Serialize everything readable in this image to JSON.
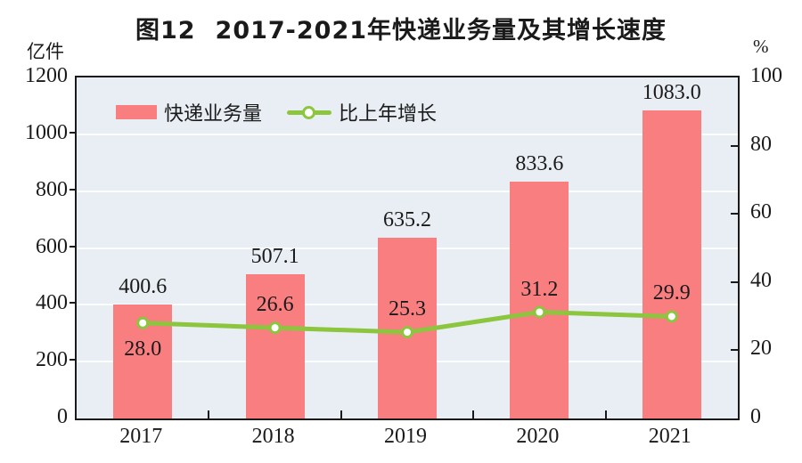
{
  "title": {
    "figure_no": "图12",
    "text": "2017-2021年快递业务量及其增长速度"
  },
  "axes": {
    "left": {
      "unit": "亿件",
      "tick_labels": [
        "1200",
        "1000",
        "800",
        "600",
        "400",
        "200",
        "0"
      ]
    },
    "right": {
      "unit": "%",
      "tick_labels": [
        "100",
        "80",
        "60",
        "40",
        "20",
        "0"
      ]
    },
    "x": {
      "labels": [
        "2017",
        "2018",
        "2019",
        "2020",
        "2021"
      ]
    }
  },
  "legend": {
    "bar_label": "快递业务量",
    "line_label": "比上年增长"
  },
  "colors": {
    "bar": "#f87e80",
    "line": "#8cc63f",
    "plot_bg": "#e8eef4",
    "grid": "#fbfdfe",
    "axis": "#1a1a1a",
    "text": "#1a1a1a",
    "marker_fill": "#ffffff"
  },
  "chart_data": {
    "type": "bar+line",
    "title": "图12 2017-2021年快递业务量及其增长速度",
    "categories": [
      "2017",
      "2018",
      "2019",
      "2020",
      "2021"
    ],
    "series": [
      {
        "name": "快递业务量",
        "type": "bar",
        "axis": "left",
        "unit": "亿件",
        "values": [
          400.6,
          507.1,
          635.2,
          833.6,
          1083.0
        ],
        "labels": [
          "400.6",
          "507.1",
          "635.2",
          "833.6",
          "1083.0"
        ]
      },
      {
        "name": "比上年增长",
        "type": "line",
        "axis": "right",
        "unit": "%",
        "values": [
          28.0,
          26.6,
          25.3,
          31.2,
          29.9
        ],
        "labels": [
          "28.0",
          "26.6",
          "25.3",
          "31.2",
          "29.9"
        ],
        "label_side": [
          "below",
          "above",
          "above",
          "above",
          "above"
        ]
      }
    ],
    "left_ylim": [
      0,
      1200
    ],
    "left_tick_step": 200,
    "right_ylim": [
      0,
      100
    ],
    "right_tick_step": 20,
    "grid": true,
    "legend_position": "top-left-inside"
  }
}
